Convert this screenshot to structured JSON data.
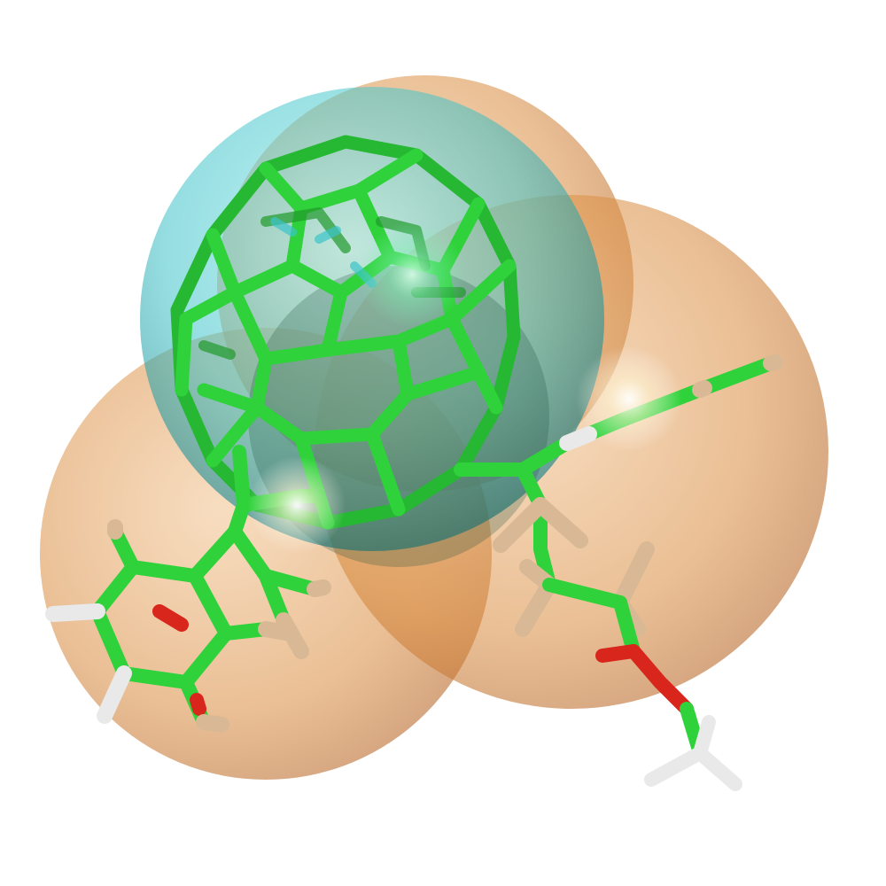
{
  "scene": {
    "subject": "molecular-render",
    "colors": {
      "background": "#ffffff",
      "carbon": "#2fd23a",
      "carbon_dark": "#1f9a2b",
      "oxygen": "#d8261c",
      "hydrogen_light": "#e9e9e9",
      "hydrogen_tan": "#d8b895",
      "sphere_cyan": "#3fc3c9",
      "sphere_orange": "#d98a3d"
    },
    "icons": [
      "fullerene-cage-icon",
      "cyan-sphere-icon",
      "orange-sphere-icon",
      "phenyl-ring-icon",
      "ester-group-icon"
    ]
  }
}
